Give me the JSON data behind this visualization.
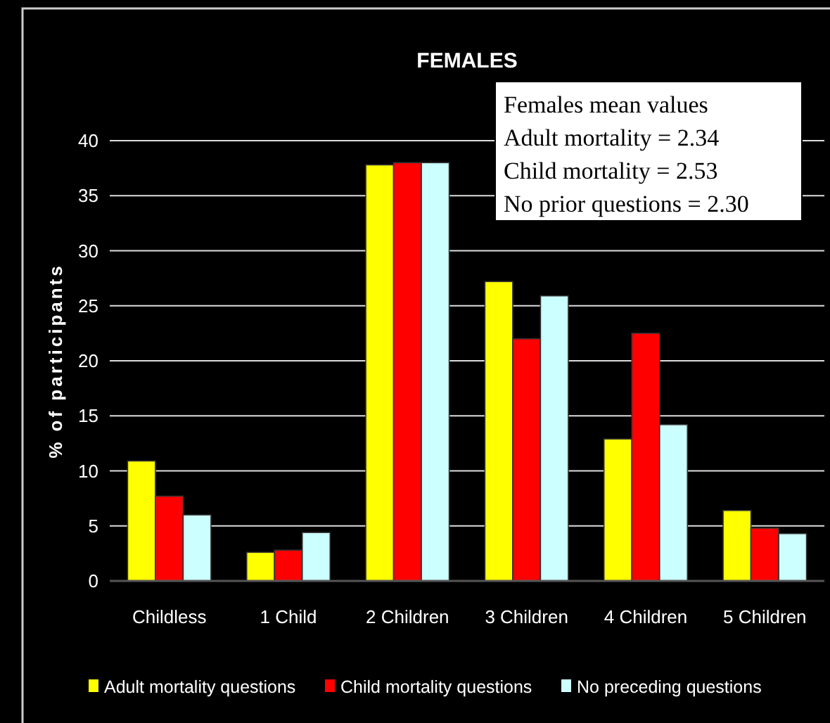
{
  "chart_data": {
    "type": "bar",
    "title": "FEMALES",
    "ylabel": "% of participants",
    "categories": [
      "Childless",
      "1 Child",
      "2 Children",
      "3 Children",
      "4 Children",
      "5 Children"
    ],
    "series": [
      {
        "name": "Adult mortality questions",
        "color": "#ffff00",
        "values": [
          10.9,
          2.6,
          37.8,
          27.2,
          12.9,
          6.4
        ]
      },
      {
        "name": "Child mortality questions",
        "color": "#ff0000",
        "values": [
          7.7,
          2.8,
          38,
          22,
          22.5,
          4.8
        ]
      },
      {
        "name": "No preceding questions",
        "color": "#ccffff",
        "values": [
          6,
          4.4,
          38,
          25.9,
          14.2,
          4.3
        ]
      }
    ],
    "ylim": [
      0,
      40
    ],
    "yticks": [
      0,
      5,
      10,
      15,
      20,
      25,
      30,
      35,
      40
    ],
    "grid": "y",
    "legend": "bottom",
    "annotations": [
      "Females mean values",
      "Adult mortality  = 2.34",
      "Child mortality = 2.53",
      "No prior questions = 2.30"
    ]
  }
}
